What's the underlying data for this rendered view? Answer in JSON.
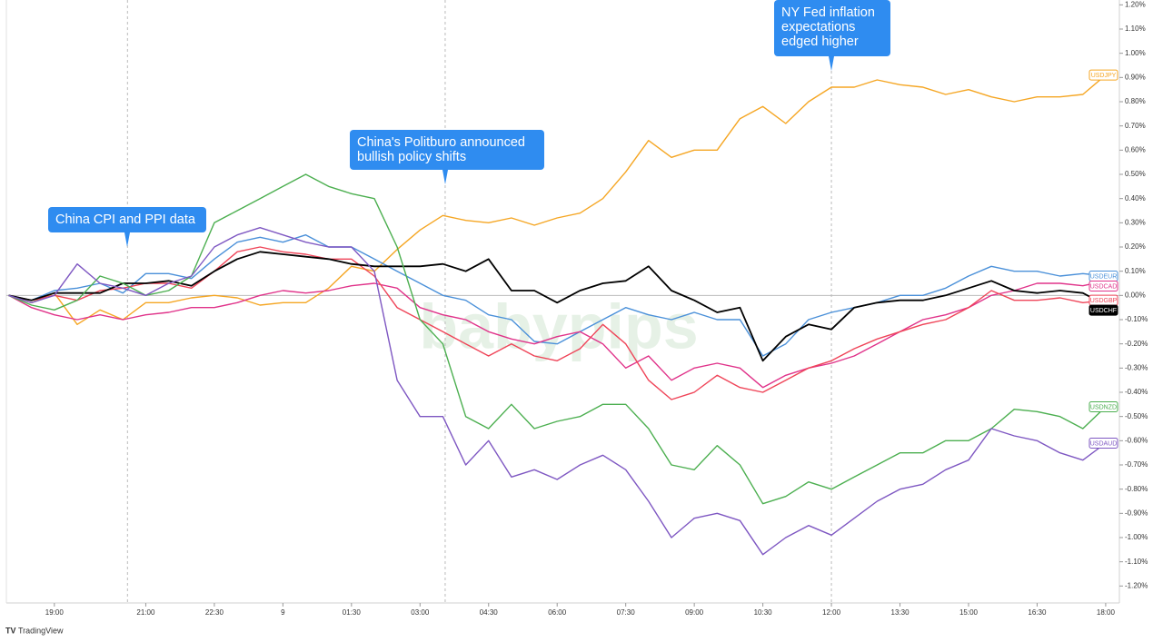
{
  "chart_data": {
    "type": "line",
    "watermark": "babypips",
    "footer": "TradingView",
    "xlim": [
      -0.1,
      48.6
    ],
    "xticks": [
      {
        "value": 2,
        "label": "19:00"
      },
      {
        "value": 6,
        "label": "21:00"
      },
      {
        "value": 9,
        "label": "22:30"
      },
      {
        "value": 12,
        "label": "9"
      },
      {
        "value": 15,
        "label": "01:30"
      },
      {
        "value": 18,
        "label": "03:00"
      },
      {
        "value": 21,
        "label": "04:30"
      },
      {
        "value": 24,
        "label": "06:00"
      },
      {
        "value": 27,
        "label": "07:30"
      },
      {
        "value": 30,
        "label": "09:00"
      },
      {
        "value": 33,
        "label": "10:30"
      },
      {
        "value": 36,
        "label": "12:00"
      },
      {
        "value": 39,
        "label": "13:30"
      },
      {
        "value": 42,
        "label": "15:00"
      },
      {
        "value": 45,
        "label": "16:30"
      },
      {
        "value": 48,
        "label": "18:00"
      }
    ],
    "ylim": [
      -1.27,
      1.22
    ],
    "yticks": [
      {
        "value": 1.2,
        "label": "1.20%"
      },
      {
        "value": 1.1,
        "label": "1.10%"
      },
      {
        "value": 1.0,
        "label": "1.00%"
      },
      {
        "value": 0.9,
        "label": "0.90%"
      },
      {
        "value": 0.8,
        "label": "0.80%"
      },
      {
        "value": 0.7,
        "label": "0.70%"
      },
      {
        "value": 0.6,
        "label": "0.60%"
      },
      {
        "value": 0.5,
        "label": "0.50%"
      },
      {
        "value": 0.4,
        "label": "0.40%"
      },
      {
        "value": 0.3,
        "label": "0.30%"
      },
      {
        "value": 0.2,
        "label": "0.20%"
      },
      {
        "value": 0.1,
        "label": "0.10%"
      },
      {
        "value": 0,
        "label": "0.00%"
      },
      {
        "value": -0.1,
        "label": "-0.10%"
      },
      {
        "value": -0.2,
        "label": "-0.20%"
      },
      {
        "value": -0.3,
        "label": "-0.30%"
      },
      {
        "value": -0.4,
        "label": "-0.40%"
      },
      {
        "value": -0.5,
        "label": "-0.50%"
      },
      {
        "value": -0.6,
        "label": "-0.60%"
      },
      {
        "value": -0.7,
        "label": "-0.70%"
      },
      {
        "value": -0.8,
        "label": "-0.80%"
      },
      {
        "value": -0.9,
        "label": "-0.90%"
      },
      {
        "value": -1.0,
        "label": "-1.00%"
      },
      {
        "value": -1.1,
        "label": "-1.10%"
      },
      {
        "value": -1.2,
        "label": "-1.20%"
      }
    ],
    "annotations": [
      {
        "text": "China CPI and PPI data",
        "x": 5.2
      },
      {
        "text": "China's Politburo announced bullish policy shifts",
        "x": 19.1
      },
      {
        "text": "NY Fed inflation expectations edged higher",
        "x": 36
      }
    ],
    "series": [
      {
        "name": "USDJPY",
        "color": "#f5a623",
        "values": [
          0,
          -0.03,
          0.01,
          -0.12,
          -0.06,
          -0.1,
          -0.03,
          -0.03,
          -0.01,
          0,
          -0.01,
          -0.04,
          -0.03,
          -0.03,
          0.03,
          0.12,
          0.1,
          0.19,
          0.27,
          0.33,
          0.31,
          0.3,
          0.32,
          0.29,
          0.32,
          0.34,
          0.4,
          0.51,
          0.64,
          0.57,
          0.6,
          0.6,
          0.73,
          0.78,
          0.71,
          0.8,
          0.86,
          0.86,
          0.89,
          0.87,
          0.86,
          0.83,
          0.85,
          0.82,
          0.8,
          0.82,
          0.82,
          0.83,
          0.91
        ]
      },
      {
        "name": "USDEUR",
        "color": "#4a90d9",
        "values": [
          0,
          -0.02,
          0.02,
          0.03,
          0.05,
          0.01,
          0.09,
          0.09,
          0.07,
          0.15,
          0.22,
          0.24,
          0.22,
          0.25,
          0.2,
          0.2,
          0.15,
          0.1,
          0.05,
          0,
          -0.02,
          -0.08,
          -0.1,
          -0.19,
          -0.2,
          -0.15,
          -0.1,
          -0.05,
          -0.08,
          -0.1,
          -0.07,
          -0.1,
          -0.1,
          -0.25,
          -0.2,
          -0.1,
          -0.07,
          -0.05,
          -0.03,
          0,
          0,
          0.03,
          0.08,
          0.12,
          0.1,
          0.1,
          0.08,
          0.09,
          0.08
        ]
      },
      {
        "name": "USDCAD",
        "color": "#e0338a",
        "values": [
          0,
          -0.05,
          -0.08,
          -0.1,
          -0.08,
          -0.1,
          -0.08,
          -0.07,
          -0.05,
          -0.05,
          -0.03,
          0,
          0.02,
          0.01,
          0.02,
          0.04,
          0.05,
          0.03,
          -0.05,
          -0.08,
          -0.1,
          -0.15,
          -0.18,
          -0.2,
          -0.17,
          -0.15,
          -0.2,
          -0.3,
          -0.25,
          -0.35,
          -0.3,
          -0.28,
          -0.3,
          -0.38,
          -0.33,
          -0.3,
          -0.28,
          -0.25,
          -0.2,
          -0.15,
          -0.1,
          -0.08,
          -0.05,
          0,
          0.02,
          0.05,
          0.05,
          0.04,
          0.06
        ]
      },
      {
        "name": "USDGBP",
        "color": "#ef4458",
        "values": [
          0,
          -0.02,
          0,
          -0.02,
          0.02,
          0.03,
          0.05,
          0.05,
          0.03,
          0.1,
          0.18,
          0.2,
          0.18,
          0.17,
          0.15,
          0.15,
          0.08,
          -0.05,
          -0.1,
          -0.15,
          -0.2,
          -0.25,
          -0.2,
          -0.25,
          -0.27,
          -0.22,
          -0.12,
          -0.2,
          -0.35,
          -0.43,
          -0.4,
          -0.33,
          -0.38,
          -0.4,
          -0.35,
          -0.3,
          -0.27,
          -0.22,
          -0.18,
          -0.15,
          -0.12,
          -0.1,
          -0.05,
          0.02,
          -0.02,
          -0.02,
          -0.01,
          -0.03,
          -0.02
        ]
      },
      {
        "name": "USDCHF",
        "color": "#000000",
        "values": [
          0,
          -0.02,
          0.01,
          0.01,
          0.01,
          0.05,
          0.05,
          0.06,
          0.04,
          0.1,
          0.15,
          0.18,
          0.17,
          0.16,
          0.15,
          0.13,
          0.12,
          0.12,
          0.12,
          0.13,
          0.1,
          0.15,
          0.02,
          0.02,
          -0.03,
          0.02,
          0.05,
          0.06,
          0.12,
          0.02,
          -0.02,
          -0.07,
          -0.05,
          -0.27,
          -0.17,
          -0.12,
          -0.14,
          -0.05,
          -0.03,
          -0.02,
          -0.02,
          0,
          0.03,
          0.06,
          0.02,
          0.01,
          0.02,
          0.01,
          -0.04
        ]
      },
      {
        "name": "USDNZD",
        "color": "#4caf50",
        "values": [
          0,
          -0.04,
          -0.06,
          -0.02,
          0.08,
          0.05,
          0,
          0.02,
          0.08,
          0.3,
          0.35,
          0.4,
          0.45,
          0.5,
          0.45,
          0.42,
          0.4,
          0.2,
          -0.1,
          -0.2,
          -0.5,
          -0.55,
          -0.45,
          -0.55,
          -0.52,
          -0.5,
          -0.45,
          -0.45,
          -0.55,
          -0.7,
          -0.72,
          -0.62,
          -0.7,
          -0.86,
          -0.83,
          -0.77,
          -0.8,
          -0.75,
          -0.7,
          -0.65,
          -0.65,
          -0.6,
          -0.6,
          -0.55,
          -0.47,
          -0.48,
          -0.5,
          -0.55,
          -0.46
        ]
      },
      {
        "name": "USDAUD",
        "color": "#7e57c2",
        "values": [
          0,
          -0.03,
          0,
          0.13,
          0.05,
          0.03,
          0,
          0.05,
          0.08,
          0.2,
          0.25,
          0.28,
          0.25,
          0.22,
          0.2,
          0.2,
          0.1,
          -0.35,
          -0.5,
          -0.5,
          -0.7,
          -0.6,
          -0.75,
          -0.72,
          -0.76,
          -0.7,
          -0.66,
          -0.72,
          -0.85,
          -1.0,
          -0.92,
          -0.9,
          -0.93,
          -1.07,
          -1.0,
          -0.95,
          -0.99,
          -0.92,
          -0.85,
          -0.8,
          -0.78,
          -0.72,
          -0.68,
          -0.55,
          -0.58,
          -0.6,
          -0.65,
          -0.68,
          -0.61
        ]
      }
    ]
  }
}
